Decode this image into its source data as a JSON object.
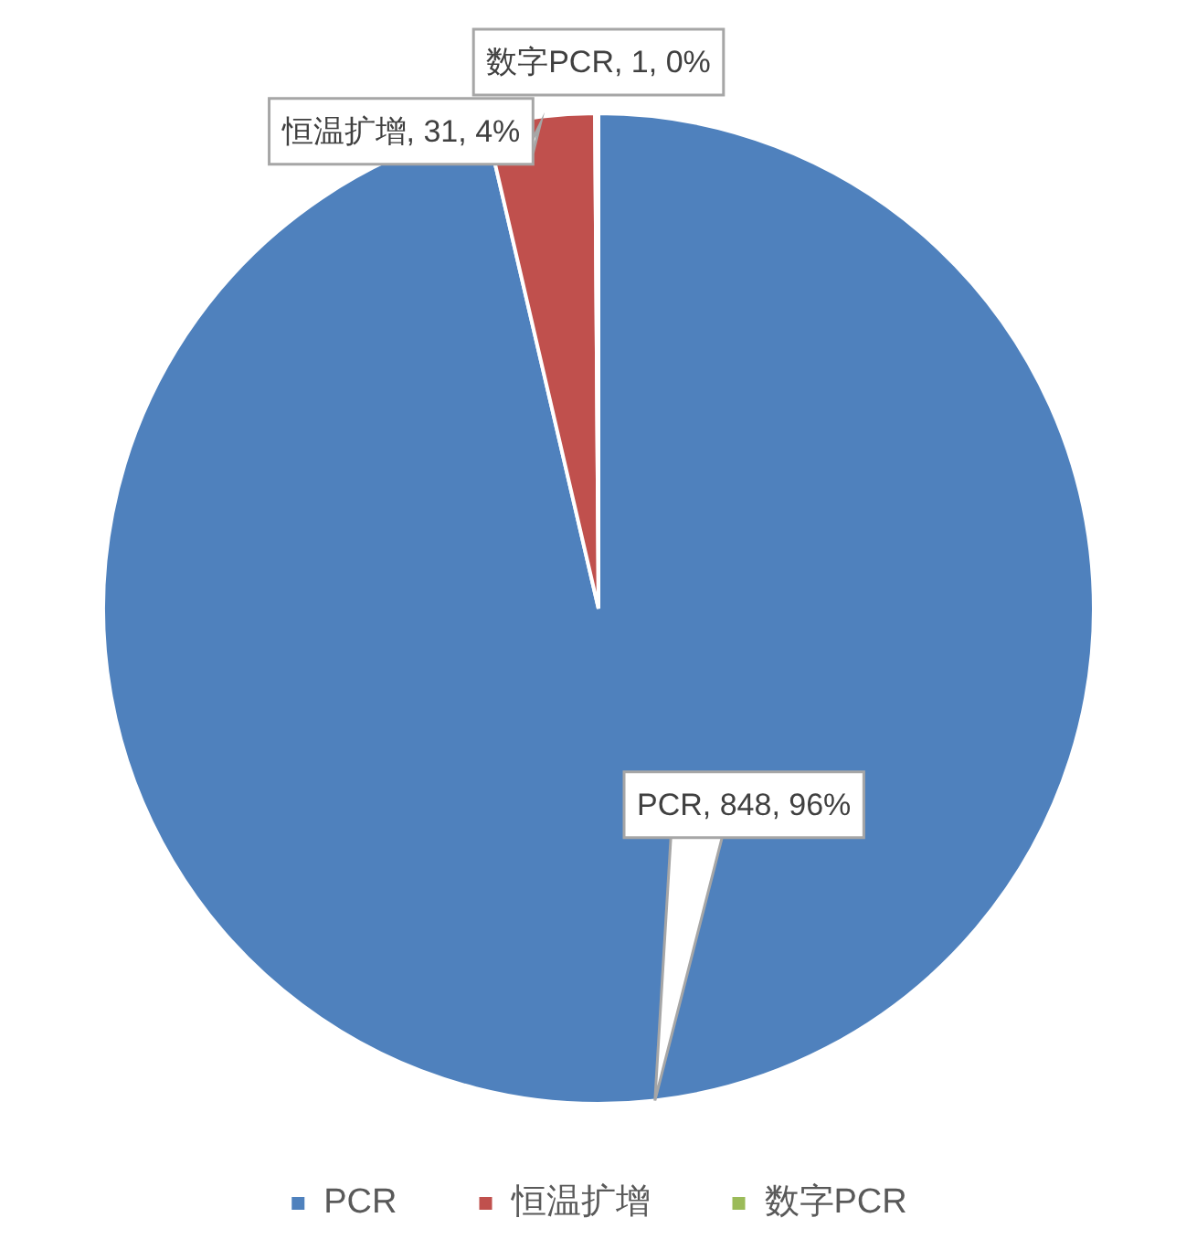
{
  "chart_data": {
    "type": "pie",
    "categories": [
      "PCR",
      "恒温扩增",
      "数字PCR"
    ],
    "values": [
      848,
      31,
      1
    ],
    "colors": [
      "#4f81bd",
      "#c0504d",
      "#9bbb59"
    ],
    "value_labels": [
      "PCR, 848, 96%",
      "恒温扩增, 31, 4%",
      "数字PCR, 1, 0%"
    ],
    "legend": "bottom"
  }
}
